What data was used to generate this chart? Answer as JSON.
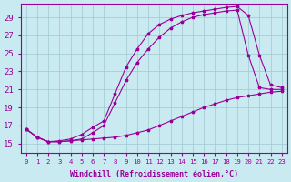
{
  "xlabel": "Windchill (Refroidissement éolien,°C)",
  "bg_color": "#c8eaf0",
  "line_color": "#990099",
  "grid_color": "#a0c8d0",
  "xticks": [
    0,
    1,
    2,
    3,
    4,
    5,
    6,
    7,
    8,
    9,
    10,
    11,
    12,
    13,
    14,
    15,
    16,
    17,
    18,
    19,
    20,
    21,
    22,
    23
  ],
  "yticks": [
    15,
    17,
    19,
    21,
    23,
    25,
    27,
    29
  ],
  "ylim": [
    14.0,
    30.5
  ],
  "xlim": [
    -0.5,
    23.5
  ],
  "line1_x": [
    0,
    1,
    2,
    3,
    4,
    5,
    6,
    7,
    8,
    9,
    10,
    11,
    12,
    13,
    14,
    15,
    16,
    17,
    18,
    19,
    20,
    21,
    22,
    23
  ],
  "line1_y": [
    16.6,
    15.7,
    15.2,
    15.2,
    15.3,
    15.4,
    15.5,
    15.6,
    15.7,
    15.9,
    16.2,
    16.5,
    17.0,
    17.5,
    18.0,
    18.5,
    19.0,
    19.4,
    19.8,
    20.1,
    20.3,
    20.5,
    20.7,
    20.8
  ],
  "line2_x": [
    0,
    1,
    2,
    3,
    4,
    5,
    6,
    7,
    8,
    9,
    10,
    11,
    12,
    13,
    14,
    15,
    16,
    17,
    18,
    19,
    20,
    21,
    22,
    23
  ],
  "line2_y": [
    16.6,
    15.7,
    15.2,
    15.2,
    15.3,
    15.5,
    16.2,
    17.0,
    19.5,
    22.0,
    24.0,
    25.5,
    26.8,
    27.8,
    28.5,
    29.0,
    29.3,
    29.5,
    29.7,
    29.8,
    24.8,
    21.2,
    21.0,
    21.0
  ],
  "line3_x": [
    0,
    1,
    2,
    3,
    4,
    5,
    6,
    7,
    8,
    9,
    10,
    11,
    12,
    13,
    14,
    15,
    16,
    17,
    18,
    19,
    20,
    21,
    22,
    23
  ],
  "line3_y": [
    16.6,
    15.7,
    15.2,
    15.3,
    15.5,
    16.0,
    16.8,
    17.5,
    20.5,
    23.5,
    25.5,
    27.2,
    28.2,
    28.8,
    29.2,
    29.5,
    29.7,
    29.9,
    30.1,
    30.2,
    29.2,
    24.8,
    21.5,
    21.2
  ],
  "xlabel_fontsize": 6.0,
  "ytick_fontsize": 6.5,
  "xtick_fontsize": 5.2
}
